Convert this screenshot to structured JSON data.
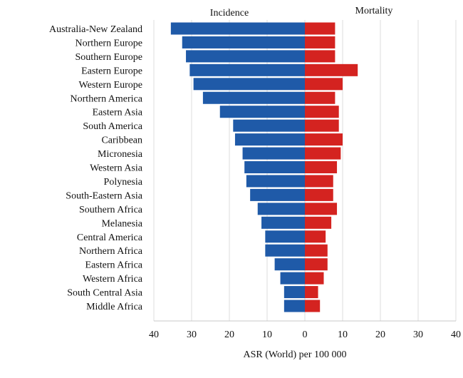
{
  "chart_data": {
    "type": "bar",
    "orientation": "horizontal",
    "layout": "back-to-back",
    "categories": [
      "Australia-New Zealand",
      "Northern Europe",
      "Southern Europe",
      "Eastern Europe",
      "Western Europe",
      "Northern America",
      "Eastern Asia",
      "South America",
      "Caribbean",
      "Micronesia",
      "Western Asia",
      "Polynesia",
      "South-Eastern Asia",
      "Southern Africa",
      "Melanesia",
      "Central America",
      "Northern Africa",
      "Eastern Africa",
      "Western Africa",
      "South Central Asia",
      "Middle Africa"
    ],
    "series": [
      {
        "name": "Incidence",
        "side": "left",
        "values": [
          35.5,
          32.5,
          31.5,
          30.5,
          29.5,
          27,
          22.5,
          19,
          18.5,
          16.5,
          16,
          15.5,
          14.5,
          12.5,
          11.5,
          10.5,
          10.5,
          8,
          6.5,
          5.5,
          5.5
        ]
      },
      {
        "name": "Mortality",
        "side": "right",
        "values": [
          8,
          8,
          8,
          14,
          10,
          8,
          9,
          9,
          10,
          9.5,
          8.5,
          7.5,
          7.5,
          8.5,
          7,
          5.5,
          6,
          6,
          5,
          3.5,
          4
        ]
      }
    ],
    "xlabel": "ASR (World) per 100 000",
    "x_ticks": [
      "40",
      "30",
      "20",
      "10",
      "0",
      "10",
      "20",
      "30",
      "40"
    ],
    "xlim": [
      -40,
      40
    ],
    "grid": true,
    "colors": {
      "incidence": "#1f5aa8",
      "mortality": "#d42320",
      "grid": "#dcdcdc"
    }
  }
}
